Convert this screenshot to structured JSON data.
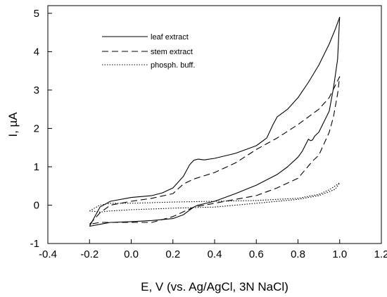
{
  "chart_data": {
    "type": "line",
    "title": "",
    "xlabel": "E, V (vs. Ag/AgCl, 3N NaCl)",
    "ylabel": "I, µA",
    "xlim": [
      -0.4,
      1.2
    ],
    "ylim": [
      -1,
      5.2
    ],
    "xticks": [
      -0.4,
      -0.2,
      0.0,
      0.2,
      0.4,
      0.6,
      0.8,
      1.0,
      1.2
    ],
    "xtick_labels": [
      "-0.4",
      "-0.2",
      "0.0",
      "0.2",
      "0.4",
      "0.6",
      "0.8",
      "1.0",
      "1.2"
    ],
    "yticks": [
      -1,
      0,
      1,
      2,
      3,
      4,
      5
    ],
    "ytick_labels": [
      "-1",
      "0",
      "1",
      "2",
      "3",
      "4",
      "5"
    ],
    "grid": false,
    "legend_position": "top-left",
    "series": [
      {
        "name": "leaf extract",
        "line_style": "solid",
        "color": "#000000",
        "x": [
          -0.2,
          -0.15,
          -0.1,
          0.0,
          0.1,
          0.15,
          0.2,
          0.25,
          0.28,
          0.3,
          0.32,
          0.35,
          0.4,
          0.5,
          0.6,
          0.65,
          0.68,
          0.7,
          0.75,
          0.8,
          0.85,
          0.9,
          0.95,
          0.98,
          1.0,
          0.99,
          0.97,
          0.95,
          0.9,
          0.88,
          0.87,
          0.86,
          0.85,
          0.82,
          0.8,
          0.75,
          0.7,
          0.6,
          0.5,
          0.4,
          0.32,
          0.3,
          0.25,
          0.2,
          0.1,
          0.0,
          -0.1,
          -0.15,
          -0.2
        ],
        "y": [
          -0.55,
          -0.05,
          0.1,
          0.2,
          0.25,
          0.32,
          0.45,
          0.75,
          1.05,
          1.17,
          1.2,
          1.18,
          1.22,
          1.35,
          1.55,
          1.75,
          2.1,
          2.3,
          2.5,
          2.8,
          3.2,
          3.65,
          4.2,
          4.6,
          4.9,
          3.8,
          3.05,
          2.45,
          1.9,
          1.8,
          1.7,
          1.68,
          1.72,
          1.4,
          1.25,
          1.0,
          0.8,
          0.52,
          0.3,
          0.1,
          0.0,
          -0.05,
          -0.25,
          -0.35,
          -0.4,
          -0.43,
          -0.45,
          -0.5,
          -0.55
        ]
      },
      {
        "name": "stem extract",
        "line_style": "dashed",
        "color": "#000000",
        "x": [
          -0.2,
          -0.15,
          -0.1,
          0.0,
          0.1,
          0.2,
          0.25,
          0.3,
          0.4,
          0.5,
          0.6,
          0.7,
          0.8,
          0.9,
          0.95,
          1.0,
          0.99,
          0.97,
          0.95,
          0.9,
          0.87,
          0.8,
          0.7,
          0.6,
          0.5,
          0.4,
          0.3,
          0.2,
          0.1,
          0.0,
          -0.1,
          -0.15,
          -0.2
        ],
        "y": [
          -0.5,
          -0.2,
          0.0,
          0.1,
          0.18,
          0.3,
          0.55,
          0.68,
          0.85,
          1.1,
          1.45,
          1.75,
          2.1,
          2.5,
          2.8,
          3.35,
          2.9,
          2.3,
          1.9,
          1.3,
          1.15,
          0.7,
          0.45,
          0.25,
          0.15,
          0.05,
          -0.05,
          -0.3,
          -0.45,
          -0.45,
          -0.45,
          -0.45,
          -0.5
        ]
      },
      {
        "name": "phosph. buff.",
        "line_style": "dotted",
        "color": "#000000",
        "x": [
          -0.2,
          -0.15,
          -0.1,
          0.0,
          0.2,
          0.4,
          0.6,
          0.8,
          0.9,
          0.95,
          1.0,
          0.98,
          0.95,
          0.9,
          0.8,
          0.6,
          0.4,
          0.2,
          0.0,
          -0.1,
          -0.15,
          -0.2
        ],
        "y": [
          -0.15,
          0.0,
          0.05,
          0.05,
          0.08,
          0.1,
          0.12,
          0.18,
          0.28,
          0.4,
          0.58,
          0.42,
          0.35,
          0.25,
          0.15,
          0.05,
          -0.05,
          -0.08,
          -0.12,
          -0.15,
          -0.18,
          -0.15
        ]
      }
    ]
  }
}
